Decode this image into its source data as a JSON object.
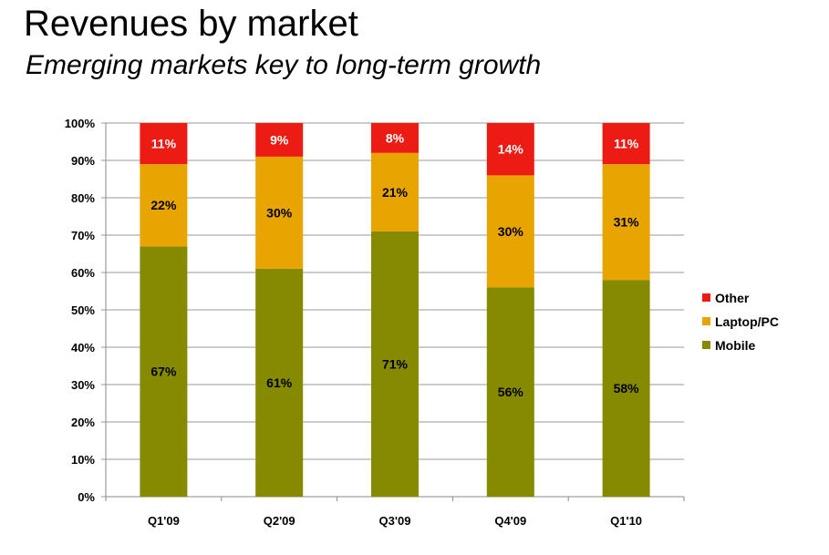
{
  "slide": {
    "title": "Revenues by market",
    "subtitle": "Emerging markets key to long-term growth"
  },
  "chart_data": {
    "type": "bar",
    "stacked": true,
    "categories": [
      "Q1'09",
      "Q2'09",
      "Q3'09",
      "Q4'09",
      "Q1'10"
    ],
    "series": [
      {
        "name": "Mobile",
        "values": [
          67,
          61,
          71,
          56,
          58
        ],
        "color": "#858a00",
        "label_color": "#000000"
      },
      {
        "name": "Laptop/PC",
        "values": [
          22,
          30,
          21,
          30,
          31
        ],
        "color": "#e8a400",
        "label_color": "#000000"
      },
      {
        "name": "Other",
        "values": [
          11,
          9,
          8,
          14,
          11
        ],
        "color": "#ec1c14",
        "label_color": "#ffffff"
      }
    ],
    "yticks": [
      "0%",
      "10%",
      "20%",
      "30%",
      "40%",
      "50%",
      "60%",
      "70%",
      "80%",
      "90%",
      "100%"
    ],
    "ylim": [
      0,
      100
    ],
    "grid": true,
    "legend": {
      "position": "right",
      "order": [
        "Other",
        "Laptop/PC",
        "Mobile"
      ]
    }
  }
}
